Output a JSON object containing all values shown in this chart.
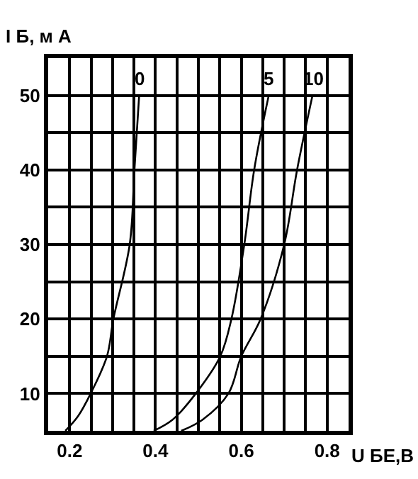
{
  "chart_data": {
    "type": "line",
    "xlabel": "U БЕ,В",
    "ylabel": "I Б, м А",
    "xlim": [
      0.15,
      0.85
    ],
    "ylim": [
      5,
      55
    ],
    "xticks": [
      0.2,
      {
        "value": 0.25,
        "label": null
      },
      {
        "value": 0.3,
        "label": null
      },
      {
        "value": 0.35,
        "label": null
      },
      0.4,
      {
        "value": 0.45,
        "label": null
      },
      {
        "value": 0.5,
        "label": null
      },
      {
        "value": 0.55,
        "label": null
      },
      0.6,
      {
        "value": 0.65,
        "label": null
      },
      {
        "value": 0.7,
        "label": null
      },
      {
        "value": 0.75,
        "label": null
      },
      0.8
    ],
    "yticks": [
      10,
      {
        "value": 15,
        "label": null
      },
      20,
      {
        "value": 25,
        "label": null
      },
      30,
      {
        "value": 35,
        "label": null
      },
      40,
      {
        "value": 45,
        "label": null
      },
      50
    ],
    "grid": true,
    "legend": false,
    "marker": "none",
    "line_style": "solid",
    "series": [
      {
        "name": "0",
        "color": "#000000",
        "x": [
          0.19,
          0.22,
          0.249,
          0.287,
          0.302,
          0.34,
          0.351,
          0.362
        ],
        "values": [
          5,
          7,
          10,
          15,
          20,
          30,
          40,
          50
        ]
      },
      {
        "name": "5",
        "color": "#000000",
        "x": [
          0.396,
          0.44,
          0.494,
          0.551,
          0.577,
          0.607,
          0.63,
          0.664
        ],
        "values": [
          5,
          6.5,
          10,
          15,
          20,
          30,
          40,
          50
        ]
      },
      {
        "name": "10",
        "color": "#000000",
        "x": [
          0.46,
          0.51,
          0.57,
          0.6,
          0.645,
          0.7,
          0.73,
          0.766
        ],
        "values": [
          5,
          6.5,
          10,
          15,
          20,
          30,
          40,
          50
        ]
      }
    ]
  }
}
